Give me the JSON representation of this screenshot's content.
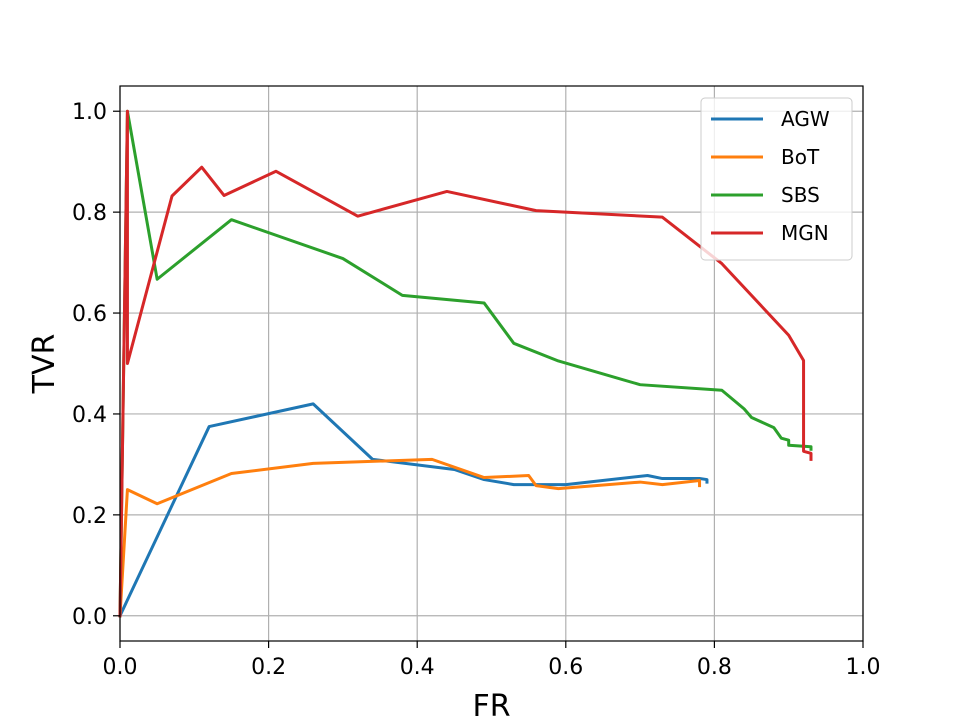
{
  "chart_data": {
    "type": "line",
    "title": "",
    "xlabel": "FR",
    "ylabel": "TVR",
    "xlim": [
      0.0,
      1.0
    ],
    "ylim": [
      -0.05,
      1.05
    ],
    "xticks": [
      0.0,
      0.2,
      0.4,
      0.6,
      0.8,
      1.0
    ],
    "xtick_labels": [
      "0.0",
      "0.2",
      "0.4",
      "0.6",
      "0.8",
      "1.0"
    ],
    "yticks": [
      0.0,
      0.2,
      0.4,
      0.6,
      0.8,
      1.0
    ],
    "ytick_labels": [
      "0.0",
      "0.2",
      "0.4",
      "0.6",
      "0.8",
      "1.0"
    ],
    "grid": true,
    "legend_position": "top-right",
    "series": [
      {
        "name": "AGW",
        "color": "#1f77b4",
        "x": [
          0.0,
          0.12,
          0.26,
          0.34,
          0.45,
          0.49,
          0.53,
          0.6,
          0.71,
          0.73,
          0.78,
          0.79,
          0.79
        ],
        "y": [
          0.0,
          0.375,
          0.42,
          0.31,
          0.29,
          0.27,
          0.26,
          0.26,
          0.278,
          0.272,
          0.272,
          0.27,
          0.265
        ]
      },
      {
        "name": "BoT",
        "color": "#ff7f0e",
        "x": [
          0.0,
          0.01,
          0.05,
          0.15,
          0.26,
          0.42,
          0.49,
          0.55,
          0.56,
          0.59,
          0.7,
          0.73,
          0.78,
          0.78
        ],
        "y": [
          0.0,
          0.25,
          0.222,
          0.282,
          0.302,
          0.31,
          0.274,
          0.278,
          0.258,
          0.252,
          0.265,
          0.26,
          0.268,
          0.258
        ]
      },
      {
        "name": "SBS",
        "color": "#2ca02c",
        "x": [
          0.0,
          0.01,
          0.05,
          0.15,
          0.3,
          0.38,
          0.49,
          0.53,
          0.59,
          0.7,
          0.81,
          0.84,
          0.85,
          0.88,
          0.89,
          0.9,
          0.9,
          0.93,
          0.93
        ],
        "y": [
          0.0,
          1.0,
          0.667,
          0.785,
          0.708,
          0.635,
          0.62,
          0.54,
          0.505,
          0.458,
          0.447,
          0.41,
          0.393,
          0.373,
          0.352,
          0.348,
          0.338,
          0.335,
          0.33
        ]
      },
      {
        "name": "MGN",
        "color": "#d62728",
        "x": [
          0.0,
          0.005,
          0.01,
          0.01,
          0.07,
          0.11,
          0.14,
          0.21,
          0.32,
          0.44,
          0.56,
          0.73,
          0.81,
          0.9,
          0.92,
          0.92,
          0.93,
          0.93
        ],
        "y": [
          0.0,
          0.5,
          1.0,
          0.5,
          0.832,
          0.889,
          0.833,
          0.881,
          0.792,
          0.841,
          0.803,
          0.79,
          0.698,
          0.556,
          0.506,
          0.326,
          0.322,
          0.31
        ]
      }
    ]
  }
}
